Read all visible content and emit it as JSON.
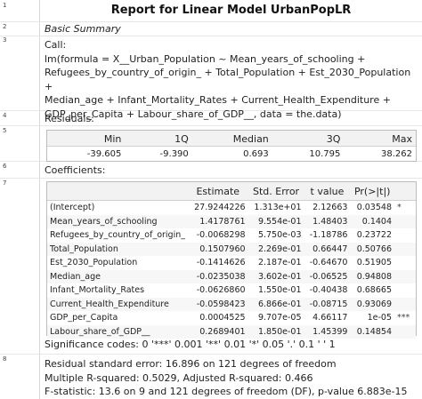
{
  "title": "Report for Linear Model UrbanPopLR",
  "row_numbers": [
    "1",
    "2",
    "3",
    "4",
    "5",
    "6",
    "7",
    "8"
  ],
  "section_basic": "Basic Summary",
  "call_label": "Call:",
  "call_lines": [
    "lm(formula = X__Urban_Population ~ Mean_years_of_schooling +",
    "Refugees_by_country_of_origin_ + Total_Population + Est_2030_Population +",
    "Median_age + Infant_Mortality_Rates + Current_Health_Expenditure +",
    "GDP_per_Capita + Labour_share_of_GDP__, data = the.data)"
  ],
  "residuals_label": "Residuals:",
  "residuals": {
    "headers": [
      "Min",
      "1Q",
      "Median",
      "3Q",
      "Max"
    ],
    "values": [
      "-39.605",
      "-9.390",
      "0.693",
      "10.795",
      "38.262"
    ]
  },
  "coefficients_label": "Coefficients:",
  "coefficients": {
    "headers": [
      "",
      "Estimate",
      "Std. Error",
      "t value",
      "Pr(>|t|)",
      ""
    ],
    "rows": [
      {
        "name": "(Intercept)",
        "estimate": "27.9244226",
        "stderr": "1.313e+01",
        "t": "2.12663",
        "p": "0.03548",
        "stars": "*"
      },
      {
        "name": "Mean_years_of_schooling",
        "estimate": "1.4178761",
        "stderr": "9.554e-01",
        "t": "1.48403",
        "p": "0.1404",
        "stars": ""
      },
      {
        "name": "Refugees_by_country_of_origin_",
        "estimate": "-0.0068298",
        "stderr": "5.750e-03",
        "t": "-1.18786",
        "p": "0.23722",
        "stars": ""
      },
      {
        "name": "Total_Population",
        "estimate": "0.1507960",
        "stderr": "2.269e-01",
        "t": "0.66447",
        "p": "0.50766",
        "stars": ""
      },
      {
        "name": "Est_2030_Population",
        "estimate": "-0.1414626",
        "stderr": "2.187e-01",
        "t": "-0.64670",
        "p": "0.51905",
        "stars": ""
      },
      {
        "name": "Median_age",
        "estimate": "-0.0235038",
        "stderr": "3.602e-01",
        "t": "-0.06525",
        "p": "0.94808",
        "stars": ""
      },
      {
        "name": "Infant_Mortality_Rates",
        "estimate": "-0.0626860",
        "stderr": "1.550e-01",
        "t": "-0.40438",
        "p": "0.68665",
        "stars": ""
      },
      {
        "name": "Current_Health_Expenditure",
        "estimate": "-0.0598423",
        "stderr": "6.866e-01",
        "t": "-0.08715",
        "p": "0.93069",
        "stars": ""
      },
      {
        "name": "GDP_per_Capita",
        "estimate": "0.0004525",
        "stderr": "9.707e-05",
        "t": "4.66117",
        "p": "1e-05",
        "stars": "***"
      },
      {
        "name": "Labour_share_of_GDP__",
        "estimate": "0.2689401",
        "stderr": "1.850e-01",
        "t": "1.45399",
        "p": "0.14854",
        "stars": ""
      }
    ]
  },
  "signif_codes": "Significance codes: 0 '***' 0.001 '**' 0.01 '*' 0.05 '.' 0.1 ' ' 1",
  "stats_lines": [
    "Residual standard error: 16.896 on 121 degrees of freedom",
    "Multiple R-squared: 0.5029, Adjusted R-squared: 0.466",
    "F-statistic: 13.6 on 9 and 121 degrees of freedom (DF), p-value 6.883e-15"
  ]
}
